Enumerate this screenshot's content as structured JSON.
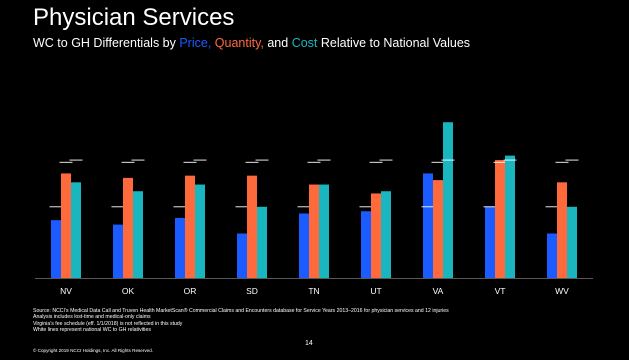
{
  "slide": {
    "title": "Physician Services",
    "subtitle": {
      "prefix": "WC to GH Differentials by ",
      "price": "Price, ",
      "quantity": "Quantity, ",
      "and": "and ",
      "cost": "Cost",
      "suffix": " Relative to National Values"
    },
    "footnotes": [
      "Source:  NCCI’s Medical Data Call and Truven Health MarketScan® Commercial Claims and Encounters database for Service Years 2013–2016 for physician services and 12 injuries",
      "Analysis includes lost-time and medical-only claims",
      "Virginia’s fee schedule (eff. 1/1/2018) is not reflected in this study",
      "White lines represent national WC to GH relativities"
    ],
    "copyright": "© Copyright 2019 NCCI Holdings, Inc. All Rights Reserved.",
    "page_number": "14"
  },
  "chart_data": {
    "type": "bar",
    "categories": [
      "NV",
      "OK",
      "OR",
      "SD",
      "TN",
      "UT",
      "VA",
      "VT",
      "WV"
    ],
    "series": [
      {
        "color": "#1a5cff",
        "values": [
          1.3,
          1.2,
          1.35,
          1.0,
          1.45,
          1.5,
          2.35,
          1.6,
          1.0
        ],
        "national": 1.6
      },
      {
        "color": "#ff6a3d",
        "values": [
          2.35,
          2.25,
          2.3,
          2.3,
          2.1,
          1.9,
          2.2,
          2.65,
          2.15
        ],
        "national": 2.6
      },
      {
        "color": "#19b6c0",
        "values": [
          2.15,
          1.95,
          2.1,
          1.6,
          2.1,
          1.95,
          3.5,
          2.75,
          1.6
        ],
        "national": 2.65
      }
    ],
    "ylim": [
      0,
      4
    ],
    "grid": false,
    "legend": "none"
  }
}
